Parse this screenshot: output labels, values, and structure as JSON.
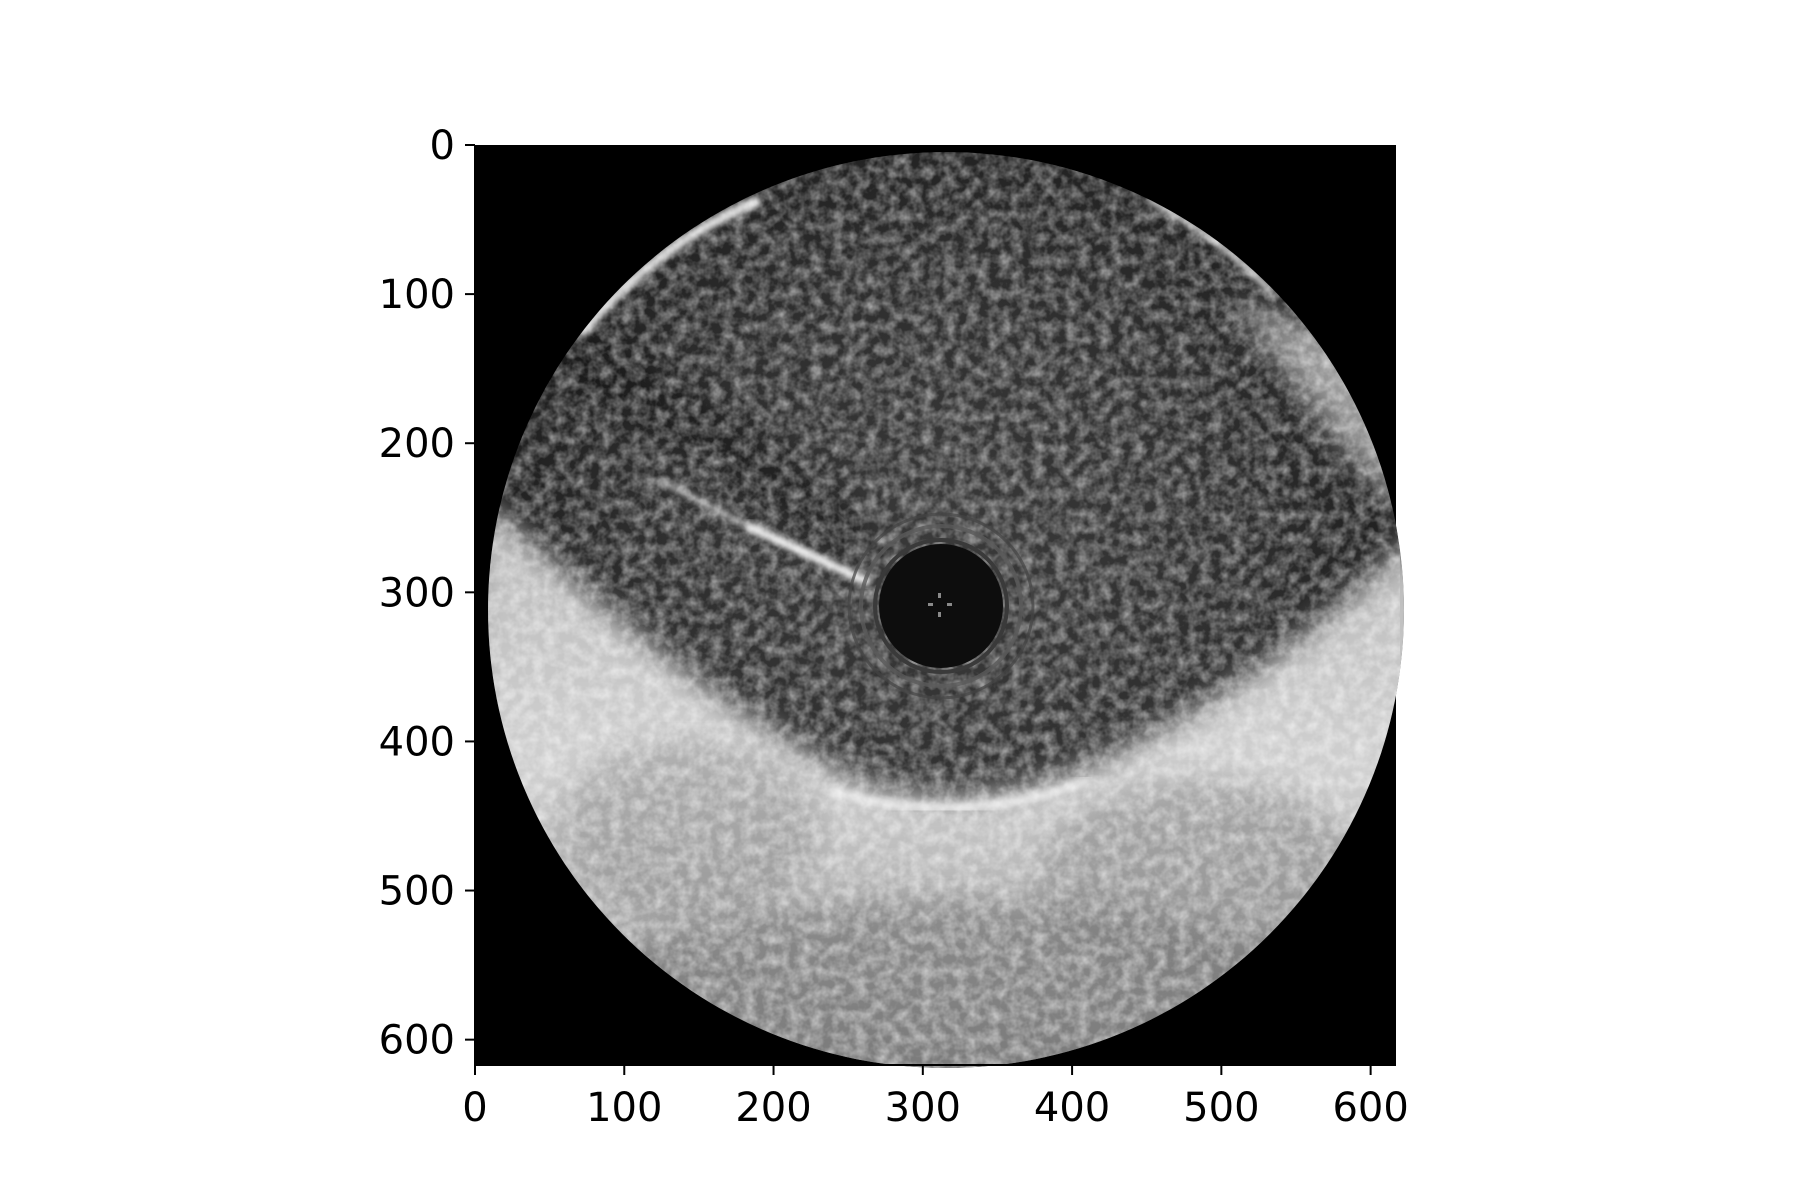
{
  "image": {
    "description_type": "grayscale intravascular ultrasound cross-section",
    "colormap": "gray",
    "background_color": "#000000"
  },
  "axes": {
    "x_ticks": [
      "0",
      "100",
      "200",
      "300",
      "400",
      "500",
      "600"
    ],
    "y_ticks": [
      "0",
      "100",
      "200",
      "300",
      "400",
      "500",
      "600"
    ],
    "x_range": [
      0,
      617
    ],
    "y_range": [
      0,
      617
    ],
    "y_inverted": true,
    "axis_color": "#000000"
  }
}
